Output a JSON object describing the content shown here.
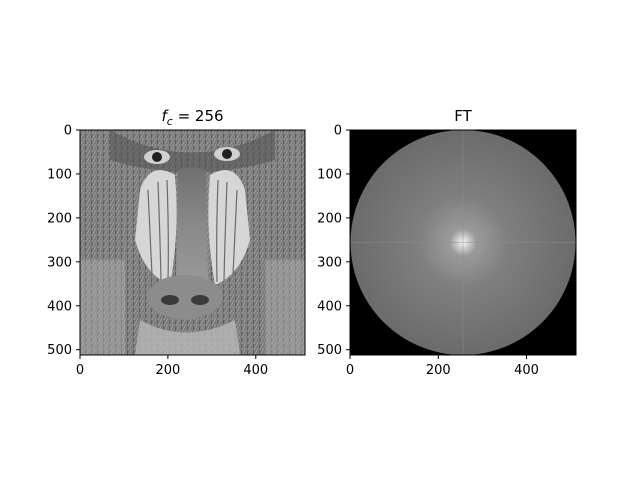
{
  "chart_data": [
    {
      "type": "image",
      "title_base": "f",
      "title_sub": "c",
      "title_rest": " = 256",
      "content": "grayscale mandrill photograph",
      "xlim": [
        0,
        512
      ],
      "ylim": [
        512,
        0
      ],
      "xticks": [
        0,
        200,
        400
      ],
      "yticks": [
        0,
        100,
        200,
        300,
        400,
        500
      ],
      "xtick_labels": [
        "0",
        "200",
        "400"
      ],
      "ytick_labels": [
        "0",
        "100",
        "200",
        "300",
        "400",
        "500"
      ],
      "colormap": "gray"
    },
    {
      "type": "image",
      "title": "FT",
      "content": "Fourier spectrum magnitude, circular low-pass mask of radius 256 centered at (256, 256)",
      "mask_center": [
        256,
        256
      ],
      "mask_radius": 256,
      "xlim": [
        0,
        512
      ],
      "ylim": [
        512,
        0
      ],
      "xticks": [
        0,
        200,
        400
      ],
      "yticks": [
        0,
        100,
        200,
        300,
        400,
        500
      ],
      "xtick_labels": [
        "0",
        "200",
        "400"
      ],
      "ytick_labels": [
        "0",
        "100",
        "200",
        "300",
        "400",
        "500"
      ],
      "colormap": "gray"
    }
  ]
}
